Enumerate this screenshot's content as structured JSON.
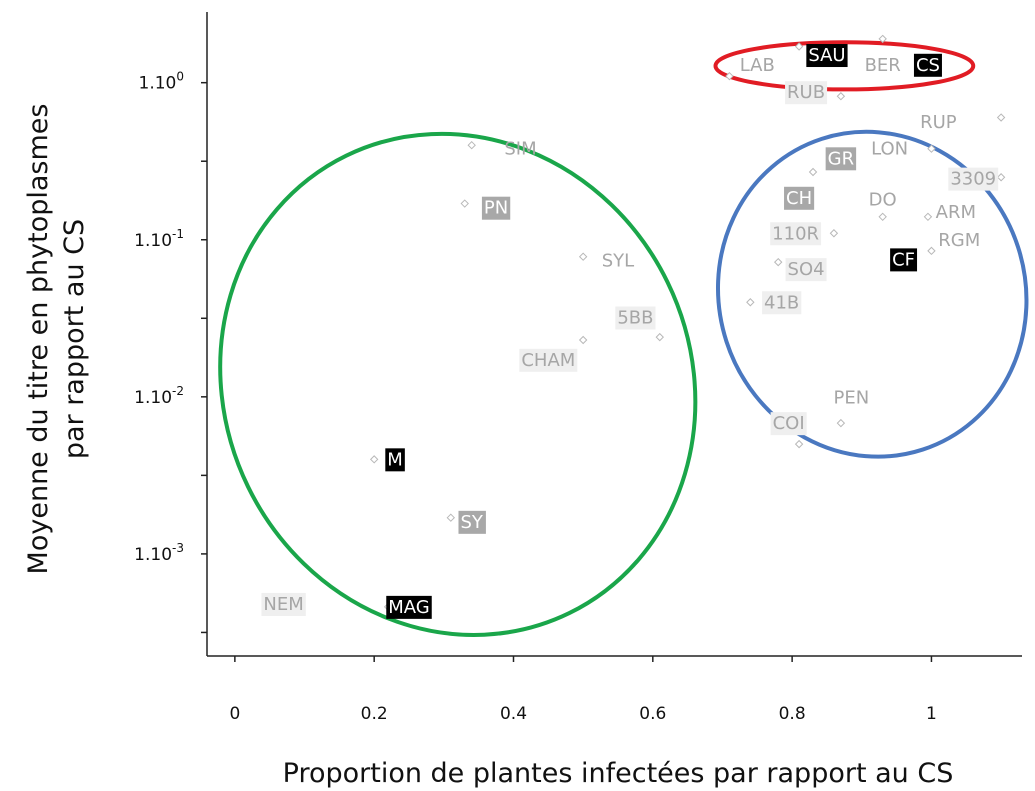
{
  "chart_data": {
    "type": "scatter",
    "xlabel": "Proportion de plantes infectées par rapport au CS",
    "ylabel_line1": "Moyenne du titre en phytoplasmes",
    "ylabel_line2": "par rapport au CS",
    "xlim": [
      -0.04,
      1.13
    ],
    "ylim_log10": [
      -3.65,
      0.45
    ],
    "log_y": true,
    "x_ticks": [
      {
        "value": 0,
        "label": "0"
      },
      {
        "value": 0.2,
        "label": "0.2"
      },
      {
        "value": 0.4,
        "label": "0.4"
      },
      {
        "value": 0.6,
        "label": "0.6"
      },
      {
        "value": 0.8,
        "label": "0.8"
      },
      {
        "value": 1,
        "label": "1"
      }
    ],
    "y_ticks": [
      {
        "exp": 0,
        "base": "1.10",
        "sup": "0"
      },
      {
        "exp": -1,
        "base": "1.10",
        "sup": "-1"
      },
      {
        "exp": -2,
        "base": "1.10",
        "sup": "-2"
      },
      {
        "exp": -3,
        "base": "1.10",
        "sup": "-3"
      }
    ],
    "grid": false,
    "label_styles": {
      "plain": {
        "bg": "none",
        "color": "#a6a6a6"
      },
      "light": {
        "bg": "#efefef",
        "color": "#a6a6a6"
      },
      "gray": {
        "bg": "#a8a8a8",
        "color": "#ffffff"
      },
      "black": {
        "bg": "#000000",
        "color": "#ffffff"
      }
    },
    "points": [
      {
        "label": "LAB",
        "x": 0.71,
        "y": 1.1,
        "style": "plain",
        "lx": 0.75,
        "ly": 1.3
      },
      {
        "label": "SAU",
        "x": 0.81,
        "y": 1.7,
        "style": "black",
        "lx": 0.85,
        "ly": 1.5
      },
      {
        "label": "BER",
        "x": 0.93,
        "y": 1.9,
        "style": "plain",
        "lx": 0.93,
        "ly": 1.3
      },
      {
        "label": "CS",
        "x": 1.0,
        "y": 1.3,
        "style": "black",
        "lx": 0.995,
        "ly": 1.3
      },
      {
        "label": "RUB",
        "x": 0.87,
        "y": 0.82,
        "style": "light",
        "lx": 0.82,
        "ly": 0.87
      },
      {
        "label": "RUP",
        "x": 1.1,
        "y": 0.6,
        "style": "plain",
        "lx": 1.01,
        "ly": 0.56
      },
      {
        "label": "LON",
        "x": 1.0,
        "y": 0.38,
        "style": "plain",
        "lx": 0.94,
        "ly": 0.38
      },
      {
        "label": "GR",
        "x": 0.83,
        "y": 0.27,
        "style": "gray",
        "lx": 0.87,
        "ly": 0.33
      },
      {
        "label": "3309",
        "x": 1.1,
        "y": 0.25,
        "style": "light",
        "lx": 1.06,
        "ly": 0.245
      },
      {
        "label": "CH",
        "x": 0.81,
        "y": 0.2,
        "style": "gray",
        "lx": 0.81,
        "ly": 0.185
      },
      {
        "label": "DO",
        "x": 0.93,
        "y": 0.14,
        "style": "plain",
        "lx": 0.93,
        "ly": 0.18
      },
      {
        "label": "ARM",
        "x": 0.995,
        "y": 0.14,
        "style": "plain",
        "lx": 1.035,
        "ly": 0.15
      },
      {
        "label": "110R",
        "x": 0.86,
        "y": 0.11,
        "style": "light",
        "lx": 0.805,
        "ly": 0.11
      },
      {
        "label": "RGM",
        "x": 1.0,
        "y": 0.085,
        "style": "plain",
        "lx": 1.04,
        "ly": 0.1
      },
      {
        "label": "CF",
        "x": 0.96,
        "y": 0.075,
        "style": "black",
        "lx": 0.96,
        "ly": 0.075
      },
      {
        "label": "SO4",
        "x": 0.78,
        "y": 0.072,
        "style": "light",
        "lx": 0.82,
        "ly": 0.065
      },
      {
        "label": "41B",
        "x": 0.74,
        "y": 0.04,
        "style": "light",
        "lx": 0.785,
        "ly": 0.04
      },
      {
        "label": "PEN",
        "x": 0.87,
        "y": 0.0068,
        "style": "plain",
        "lx": 0.885,
        "ly": 0.0099
      },
      {
        "label": "COI",
        "x": 0.81,
        "y": 0.005,
        "style": "light",
        "lx": 0.795,
        "ly": 0.0068
      },
      {
        "label": "SIM",
        "x": 0.34,
        "y": 0.4,
        "style": "plain",
        "lx": 0.41,
        "ly": 0.38
      },
      {
        "label": "PN",
        "x": 0.33,
        "y": 0.17,
        "style": "gray",
        "lx": 0.375,
        "ly": 0.16
      },
      {
        "label": "SYL",
        "x": 0.5,
        "y": 0.078,
        "style": "plain",
        "lx": 0.55,
        "ly": 0.074
      },
      {
        "label": "5BB",
        "x": 0.61,
        "y": 0.024,
        "style": "light",
        "lx": 0.575,
        "ly": 0.032
      },
      {
        "label": "CHAM",
        "x": 0.5,
        "y": 0.023,
        "style": "light",
        "lx": 0.45,
        "ly": 0.0172
      },
      {
        "label": "M",
        "x": 0.2,
        "y": 0.004,
        "style": "black",
        "lx": 0.23,
        "ly": 0.004
      },
      {
        "label": "SY",
        "x": 0.31,
        "y": 0.0017,
        "style": "gray",
        "lx": 0.34,
        "ly": 0.0016
      },
      {
        "label": "NEM",
        "x": 0.07,
        "y": 0.00048,
        "style": "light",
        "lx": 0.07,
        "ly": 0.00048
      },
      {
        "label": "MAG",
        "x": 0.22,
        "y": 0.00046,
        "style": "black",
        "lx": 0.25,
        "ly": 0.00046
      }
    ],
    "groups": [
      {
        "name": "green",
        "color": "#1aa64a",
        "cx": 0.32,
        "cy": 0.012,
        "rx_x": 0.335,
        "ry_log": 1.62,
        "angle": -26
      },
      {
        "name": "blue",
        "color": "#4a78c0",
        "cx": 0.915,
        "cy": 0.045,
        "rx_x": 0.22,
        "ry_log": 1.04,
        "angle": -18
      },
      {
        "name": "red",
        "color": "#e11c24",
        "cx": 0.875,
        "cy": 1.28,
        "rx_x": 0.185,
        "ry_log": 0.15,
        "angle": 0
      }
    ]
  }
}
